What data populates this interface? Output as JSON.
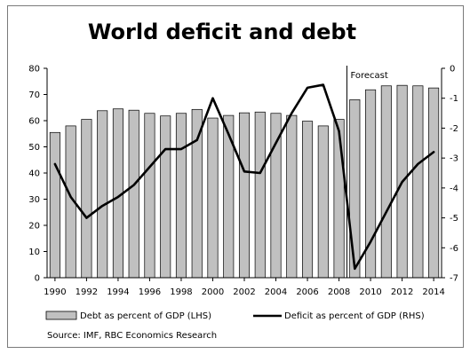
{
  "chart_data": {
    "type": "bar+line",
    "title": "World deficit and debt",
    "x": [
      1990,
      1991,
      1992,
      1993,
      1994,
      1995,
      1996,
      1997,
      1998,
      1999,
      2000,
      2001,
      2002,
      2003,
      2004,
      2005,
      2006,
      2007,
      2008,
      2009,
      2010,
      2011,
      2012,
      2013,
      2014
    ],
    "x_tick_labels": [
      "1990",
      "1992",
      "1994",
      "1996",
      "1998",
      "2000",
      "2002",
      "2004",
      "2006",
      "2008",
      "2010",
      "2012",
      "2014"
    ],
    "left_axis": {
      "ylim": [
        0,
        80
      ],
      "ticks": [
        "0",
        "10",
        "20",
        "30",
        "40",
        "50",
        "60",
        "70",
        "80"
      ]
    },
    "right_axis": {
      "ylim": [
        -7,
        0
      ],
      "ticks": [
        "0",
        "-1",
        "-2",
        "-3",
        "-4",
        "-5",
        "-6",
        "-7"
      ]
    },
    "series": [
      {
        "name": "Debt as percent of GDP  (LHS)",
        "type": "bar",
        "axis": "left",
        "color": "#c0c0c0",
        "values": [
          55.5,
          58,
          60.5,
          63.8,
          64.5,
          64,
          62.8,
          61.8,
          62.8,
          64.3,
          61,
          62,
          63,
          63.3,
          62.8,
          62,
          59.8,
          58,
          60.5,
          68,
          71.8,
          73.3,
          73.5,
          73.3,
          72.5
        ]
      },
      {
        "name": "Deficit as percent of GDP (RHS)",
        "type": "line",
        "axis": "right",
        "color": "#000000",
        "values": [
          -3.2,
          -4.3,
          -5.0,
          -4.6,
          -4.3,
          -3.9,
          -3.3,
          -2.7,
          -2.7,
          -2.4,
          -1.0,
          -2.2,
          -3.45,
          -3.5,
          -2.5,
          -1.5,
          -0.65,
          -0.55,
          -2.1,
          -6.7,
          -5.8,
          -4.8,
          -3.8,
          -3.2,
          -2.8
        ]
      }
    ],
    "annotation": {
      "text": "Forecast",
      "x": 2008.5
    },
    "source": "Source: IMF, RBC Economics Research",
    "legend_placement": "bottom",
    "grid": false
  }
}
